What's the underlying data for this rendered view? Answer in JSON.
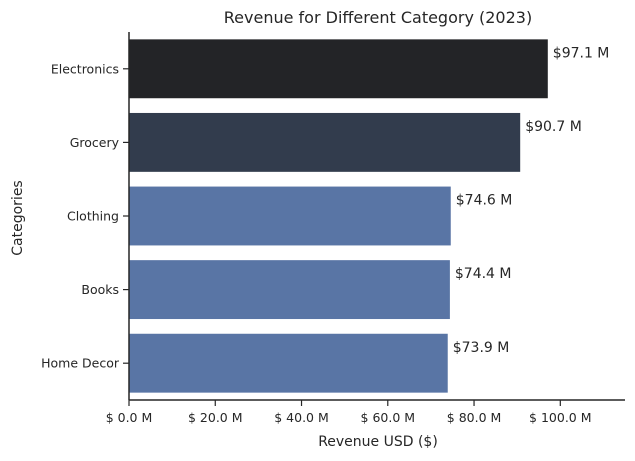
{
  "chart_data": {
    "type": "bar",
    "orientation": "horizontal",
    "title": "Revenue for Different Category (2023)",
    "xlabel": "Revenue USD ($)",
    "ylabel": "Categories",
    "categories": [
      "Electronics",
      "Grocery",
      "Clothing",
      "Books",
      "Home Decor"
    ],
    "values": [
      97.1,
      90.7,
      74.6,
      74.4,
      73.9
    ],
    "value_labels": [
      "$97.1 M",
      "$90.7 M",
      "$74.6 M",
      "$74.4 M",
      "$73.9 M"
    ],
    "colors": [
      "#232427",
      "#323c4d",
      "#5975a5",
      "#5975a5",
      "#5975a5"
    ],
    "xlim": [
      0,
      115
    ],
    "xticks": [
      0,
      20,
      40,
      60,
      80,
      100
    ],
    "xtick_labels": [
      "$ 0.0 M",
      "$ 20.0 M",
      "$ 40.0 M",
      "$ 60.0 M",
      "$ 80.0 M",
      "$ 100.0 M"
    ],
    "grid": false,
    "axis_color": "#262626"
  }
}
